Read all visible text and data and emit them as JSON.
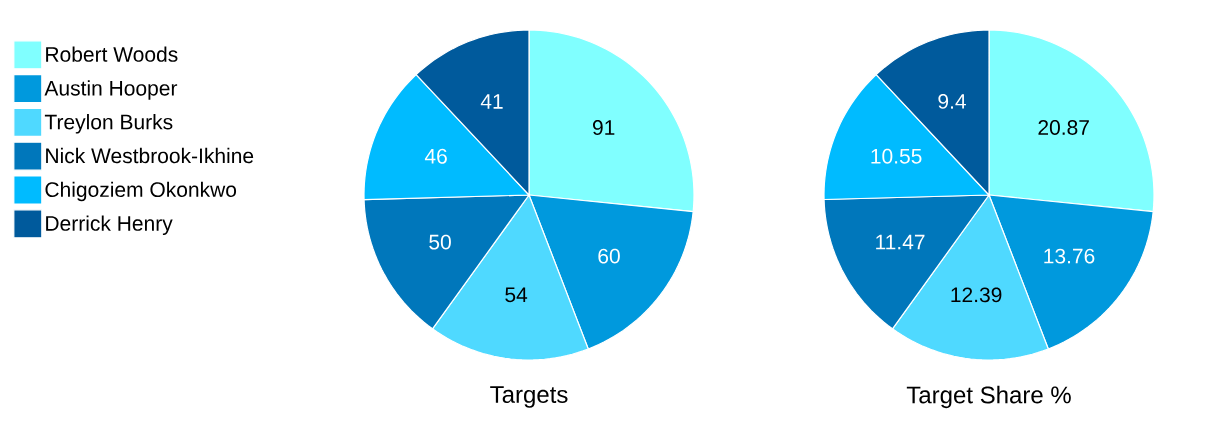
{
  "chart_data": [
    {
      "type": "pie",
      "title": "Targets",
      "categories": [
        "Robert Woods",
        "Austin Hooper",
        "Treylon Burks",
        "Nick Westbrook-Ikhine",
        "Chigoziem Okonkwo",
        "Derrick Henry"
      ],
      "values": [
        91,
        60,
        54,
        50,
        46,
        41
      ],
      "colors": [
        "#80ffff",
        "#0099dd",
        "#4fd9ff",
        "#0077bb",
        "#00bbff",
        "#005a9c"
      ],
      "data_labels": true,
      "legend": "left"
    },
    {
      "type": "pie",
      "title": "Target Share %",
      "values": [
        20.87,
        13.76,
        12.39,
        11.47,
        10.55,
        9.4
      ],
      "colors": [
        "#80ffff",
        "#0099dd",
        "#4fd9ff",
        "#0077bb",
        "#00bbff",
        "#005a9c"
      ],
      "data_labels": true
    }
  ]
}
